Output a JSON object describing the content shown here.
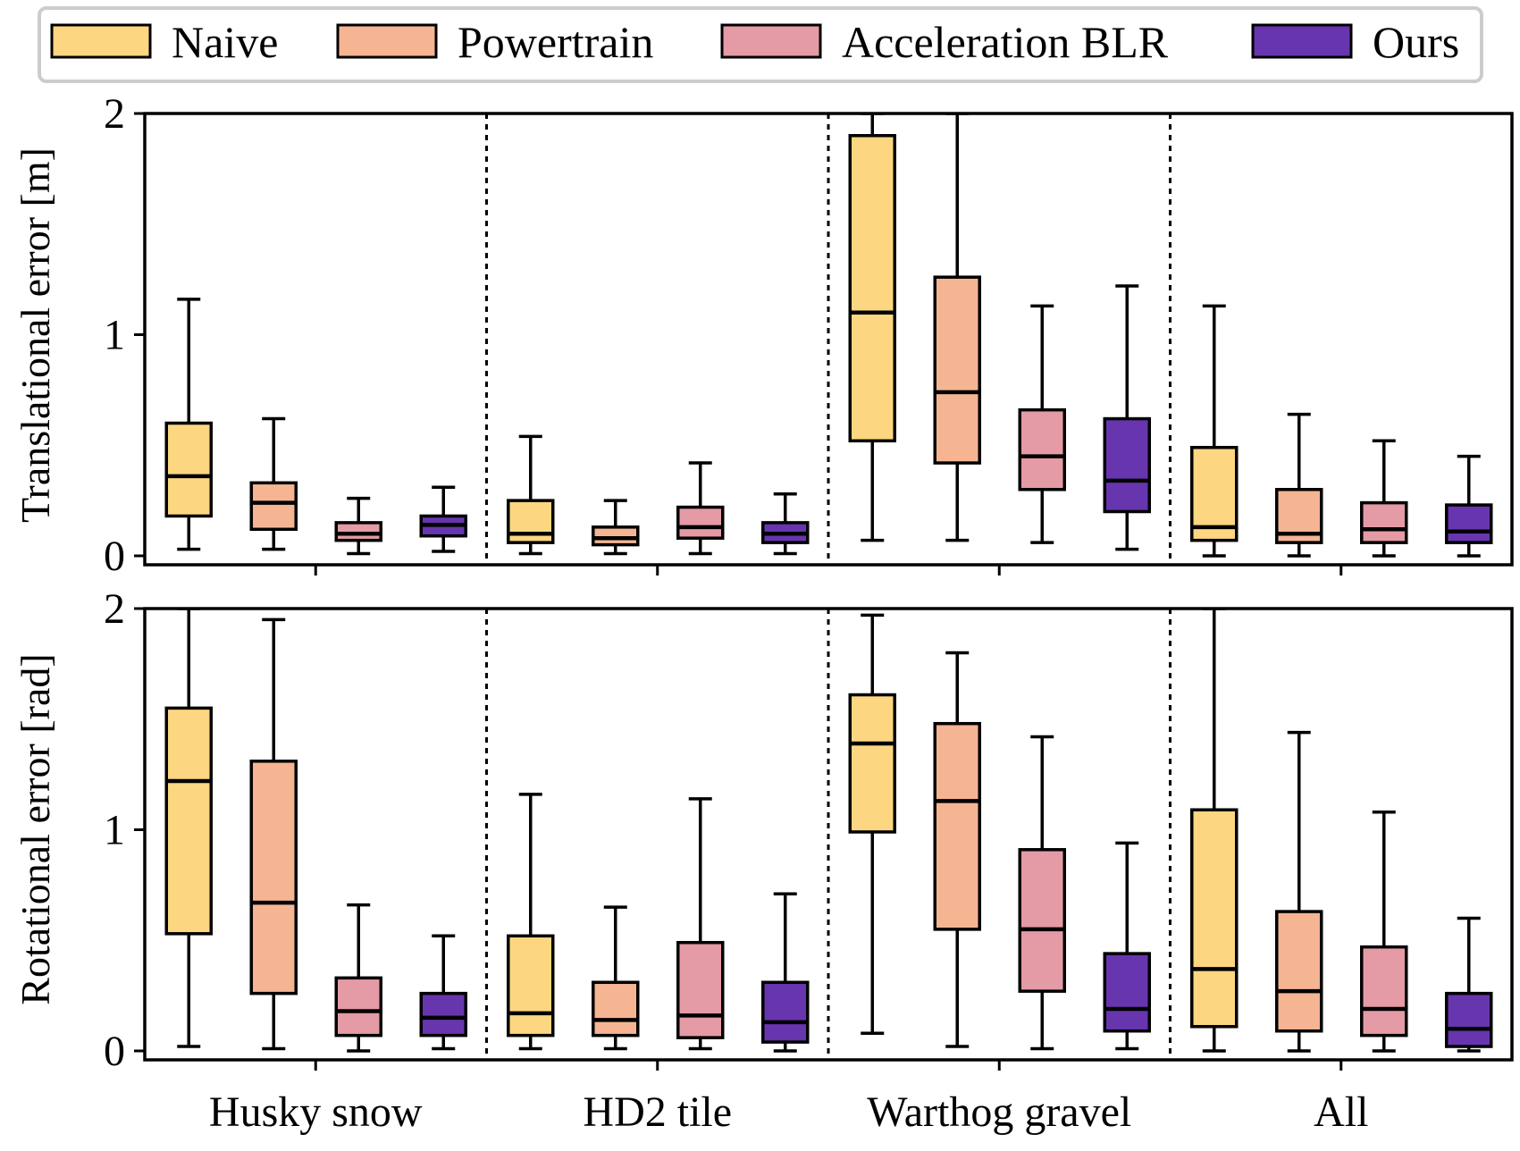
{
  "chart_data": {
    "type": "box",
    "legend": {
      "placement": "top",
      "entries": [
        {
          "label": "Naive",
          "color": "#fcd681"
        },
        {
          "label": "Powertrain",
          "color": "#f5b593"
        },
        {
          "label": "Acceleration BLR",
          "color": "#e49ba5"
        },
        {
          "label": "Ours",
          "color": "#6735ae"
        }
      ]
    },
    "categories": [
      "Husky snow",
      "HD2 tile",
      "Warthog gravel",
      "All"
    ],
    "panels": [
      {
        "ylabel": "Translational error [m]",
        "ylim": [
          0,
          2
        ],
        "yticks": [
          "0",
          "1",
          "2"
        ],
        "groups": [
          [
            {
              "min": 0.03,
              "q1": 0.18,
              "median": 0.36,
              "q3": 0.6,
              "max": 1.16
            },
            {
              "min": 0.03,
              "q1": 0.12,
              "median": 0.24,
              "q3": 0.33,
              "max": 0.62
            },
            {
              "min": 0.01,
              "q1": 0.07,
              "median": 0.1,
              "q3": 0.15,
              "max": 0.26
            },
            {
              "min": 0.02,
              "q1": 0.09,
              "median": 0.14,
              "q3": 0.18,
              "max": 0.31
            }
          ],
          [
            {
              "min": 0.01,
              "q1": 0.06,
              "median": 0.1,
              "q3": 0.25,
              "max": 0.54
            },
            {
              "min": 0.01,
              "q1": 0.05,
              "median": 0.08,
              "q3": 0.13,
              "max": 0.25
            },
            {
              "min": 0.01,
              "q1": 0.08,
              "median": 0.13,
              "q3": 0.22,
              "max": 0.42
            },
            {
              "min": 0.01,
              "q1": 0.06,
              "median": 0.1,
              "q3": 0.15,
              "max": 0.28
            }
          ],
          [
            {
              "min": 0.07,
              "q1": 0.52,
              "median": 1.1,
              "q3": 1.9,
              "max": 2.0
            },
            {
              "min": 0.07,
              "q1": 0.42,
              "median": 0.74,
              "q3": 1.26,
              "max": 2.0
            },
            {
              "min": 0.06,
              "q1": 0.3,
              "median": 0.45,
              "q3": 0.66,
              "max": 1.13
            },
            {
              "min": 0.03,
              "q1": 0.2,
              "median": 0.34,
              "q3": 0.62,
              "max": 1.22
            }
          ],
          [
            {
              "min": 0.0,
              "q1": 0.07,
              "median": 0.13,
              "q3": 0.49,
              "max": 1.13
            },
            {
              "min": 0.0,
              "q1": 0.06,
              "median": 0.1,
              "q3": 0.3,
              "max": 0.64
            },
            {
              "min": 0.0,
              "q1": 0.06,
              "median": 0.12,
              "q3": 0.24,
              "max": 0.52
            },
            {
              "min": 0.0,
              "q1": 0.06,
              "median": 0.11,
              "q3": 0.23,
              "max": 0.45
            }
          ]
        ]
      },
      {
        "ylabel": "Rotational error [rad]",
        "ylim": [
          0,
          2
        ],
        "yticks": [
          "0",
          "1",
          "2"
        ],
        "groups": [
          [
            {
              "min": 0.02,
              "q1": 0.53,
              "median": 1.22,
              "q3": 1.55,
              "max": 2.0
            },
            {
              "min": 0.01,
              "q1": 0.26,
              "median": 0.67,
              "q3": 1.31,
              "max": 1.95
            },
            {
              "min": 0.0,
              "q1": 0.07,
              "median": 0.18,
              "q3": 0.33,
              "max": 0.66
            },
            {
              "min": 0.01,
              "q1": 0.07,
              "median": 0.15,
              "q3": 0.26,
              "max": 0.52
            }
          ],
          [
            {
              "min": 0.01,
              "q1": 0.07,
              "median": 0.17,
              "q3": 0.52,
              "max": 1.16
            },
            {
              "min": 0.01,
              "q1": 0.07,
              "median": 0.14,
              "q3": 0.31,
              "max": 0.65
            },
            {
              "min": 0.01,
              "q1": 0.06,
              "median": 0.16,
              "q3": 0.49,
              "max": 1.14
            },
            {
              "min": 0.0,
              "q1": 0.04,
              "median": 0.13,
              "q3": 0.31,
              "max": 0.71
            }
          ],
          [
            {
              "min": 0.08,
              "q1": 0.99,
              "median": 1.39,
              "q3": 1.61,
              "max": 1.97
            },
            {
              "min": 0.02,
              "q1": 0.55,
              "median": 1.13,
              "q3": 1.48,
              "max": 1.8
            },
            {
              "min": 0.01,
              "q1": 0.27,
              "median": 0.55,
              "q3": 0.91,
              "max": 1.42
            },
            {
              "min": 0.01,
              "q1": 0.09,
              "median": 0.19,
              "q3": 0.44,
              "max": 0.94
            }
          ],
          [
            {
              "min": 0.0,
              "q1": 0.11,
              "median": 0.37,
              "q3": 1.09,
              "max": 2.0
            },
            {
              "min": 0.0,
              "q1": 0.09,
              "median": 0.27,
              "q3": 0.63,
              "max": 1.44
            },
            {
              "min": 0.0,
              "q1": 0.07,
              "median": 0.19,
              "q3": 0.47,
              "max": 1.08
            },
            {
              "min": 0.0,
              "q1": 0.02,
              "median": 0.1,
              "q3": 0.26,
              "max": 0.6
            }
          ]
        ]
      }
    ]
  }
}
